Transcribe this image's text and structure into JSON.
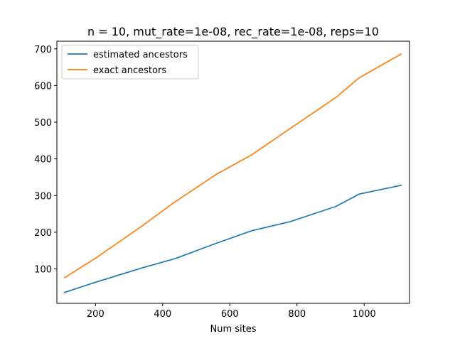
{
  "chart_data": {
    "type": "line",
    "title": "n = 10, mut_rate=1e-08, rec_rate=1e-08, reps=10",
    "xlabel": "Num sites",
    "ylabel": "",
    "xlim": [
      85,
      1135
    ],
    "ylim": [
      6,
      721
    ],
    "xticks": [
      200,
      400,
      600,
      800,
      1000
    ],
    "yticks": [
      100,
      200,
      300,
      400,
      500,
      600,
      700
    ],
    "legend_position": "top-left",
    "grid": false,
    "series": [
      {
        "name": "estimated ancestors",
        "color": "#1f77b4",
        "x": [
          108,
          205,
          340,
          437,
          560,
          665,
          780,
          915,
          985,
          1110
        ],
        "y": [
          36,
          65,
          103,
          128,
          170,
          204,
          229,
          270,
          304,
          328
        ]
      },
      {
        "name": "exact ancestors",
        "color": "#ff7f0e",
        "x": [
          108,
          205,
          340,
          437,
          560,
          665,
          780,
          915,
          985,
          1110
        ],
        "y": [
          76,
          132,
          218,
          283,
          358,
          411,
          483,
          567,
          621,
          686
        ]
      }
    ]
  }
}
